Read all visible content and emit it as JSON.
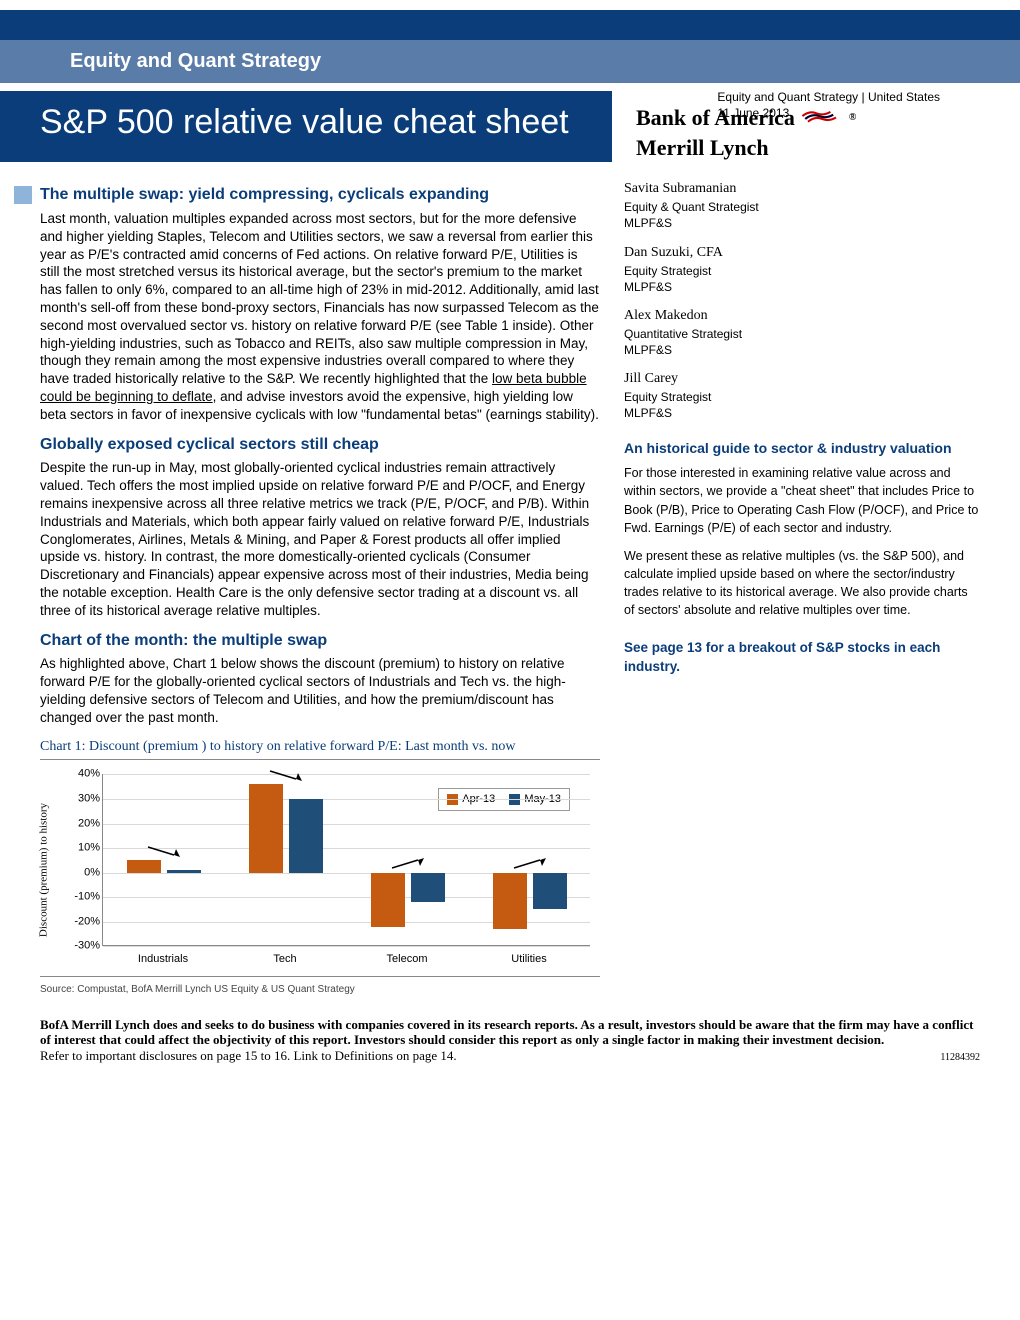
{
  "banner": {
    "section_title": "Equity and Quant Strategy",
    "meta_line": "Equity and Quant Strategy | United States",
    "date": "11 June 2013",
    "main_title": "S&P 500 relative value cheat sheet"
  },
  "logo": {
    "line1": "Bank of America",
    "line2": "Merrill Lynch",
    "registered": "®"
  },
  "authors": [
    {
      "name": "Savita Subramanian",
      "role": "Equity & Quant Strategist",
      "org": "MLPF&S"
    },
    {
      "name": "Dan Suzuki, CFA",
      "role": "Equity Strategist",
      "org": "MLPF&S"
    },
    {
      "name": "Alex Makedon",
      "role": "Quantitative Strategist",
      "org": "MLPF&S"
    },
    {
      "name": "Jill Carey",
      "role": "Equity Strategist",
      "org": "MLPF&S"
    }
  ],
  "sections": {
    "s1_title": "The multiple swap: yield compressing, cyclicals expanding",
    "s1_body_a": "Last month, valuation multiples expanded across most sectors, but for the more defensive and higher yielding Staples, Telecom and Utilities sectors, we saw a reversal from earlier this year as P/E's contracted amid concerns of Fed actions. On relative forward P/E, Utilities is still the most stretched versus its historical average, but the sector's premium to the market has fallen to only 6%, compared to an all-time high of 23% in mid-2012. Additionally, amid last month's sell-off from these bond-proxy sectors, Financials has now surpassed Telecom as the second most overvalued sector vs. history on relative forward P/E (see Table 1 inside). Other high-yielding industries, such as Tobacco and REITs, also saw multiple compression in May, though they remain among the most expensive industries overall compared to where they have traded historically relative to the S&P. We recently highlighted that the ",
    "s1_link": "low beta bubble could be beginning to deflate",
    "s1_body_b": ", and advise investors avoid the expensive, high yielding low beta sectors in favor of inexpensive cyclicals with low \"fundamental betas\" (earnings stability).",
    "s2_title": "Globally exposed cyclical sectors still cheap",
    "s2_body": "Despite the run-up in May, most globally-oriented cyclical industries remain attractively valued. Tech offers the most implied upside on relative forward P/E and P/OCF, and Energy remains inexpensive across all three relative metrics we track (P/E, P/OCF, and P/B). Within Industrials and Materials, which both appear fairly valued on relative forward P/E, Industrials Conglomerates, Airlines, Metals & Mining, and Paper & Forest products all offer implied upside vs. history. In contrast, the more domestically-oriented cyclicals (Consumer Discretionary and Financials) appear expensive across most of their industries, Media being the notable exception. Health Care is the only defensive sector trading at a discount vs. all three of its historical average relative multiples.",
    "s3_title": "Chart of the month: the multiple swap",
    "s3_body": "As highlighted above, Chart 1 below shows the discount (premium) to history on relative forward P/E for the globally-oriented cyclical sectors of Industrials and Tech vs. the high-yielding defensive sectors of Telecom and Utilities, and how the premium/discount has changed over the past month."
  },
  "sidebar": {
    "guide_title": "An historical guide to sector & industry valuation",
    "guide_p1": "For those interested in examining relative value across and within sectors, we provide a \"cheat sheet\" that includes Price to Book (P/B), Price to Operating Cash Flow (P/OCF), and Price to Fwd. Earnings (P/E) of each sector and industry.",
    "guide_p2": "We present these as relative multiples (vs. the S&P 500), and calculate implied upside based on where the sector/industry trades relative to its historical average. We also provide charts of sectors' absolute and relative multiples over time.",
    "see_page": "See page 13 for a breakout of S&P stocks in each industry."
  },
  "chart": {
    "title": "Chart 1: Discount (premium ) to history on relative forward P/E: Last month vs. now",
    "y_label": "Discount (premium) to history",
    "source": "Source: Compustat, BofA Merrill Lynch US Equity & US Quant Strategy",
    "legend": {
      "series1": "Apr-13",
      "series2": "May-13"
    },
    "series_colors": {
      "apr": "#c55a11",
      "may": "#1f4e79"
    },
    "y_ticks": [
      "40%",
      "30%",
      "20%",
      "10%",
      "0%",
      "-10%",
      "-20%",
      "-30%"
    ],
    "y_min": -30,
    "y_max": 40,
    "y_step": 10,
    "categories": [
      "Industrials",
      "Tech",
      "Telecom",
      "Utilities"
    ],
    "data": {
      "apr": [
        5,
        36,
        -22,
        -23
      ],
      "may": [
        1,
        30,
        -12,
        -15
      ]
    },
    "grid_color": "#d9d9d9",
    "axis_color": "#888888",
    "plot_bg": "#ffffff"
  },
  "disclaimer": {
    "bold": "BofA Merrill Lynch does and seeks to do business with companies covered in its research reports. As a result, investors should be aware that the firm may have a conflict of interest that could affect the objectivity of this report. Investors should consider this report as only a single factor in making their investment decision.",
    "line2": "Refer to important disclosures on page 15 to 16.  Link to Definitions on page 14.",
    "doc_id": "11284392"
  }
}
